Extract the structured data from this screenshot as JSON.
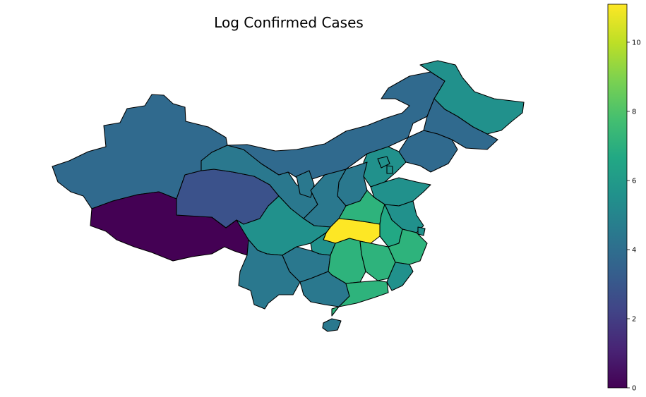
{
  "map": {
    "title": "Log Confirmed Cases"
  },
  "colorbar": {
    "min": 0,
    "max": 11.1,
    "ticks": [
      {
        "value": 0,
        "label": "0"
      },
      {
        "value": 2,
        "label": "2"
      },
      {
        "value": 4,
        "label": "4"
      },
      {
        "value": 6,
        "label": "6"
      },
      {
        "value": 8,
        "label": "8"
      },
      {
        "value": 10,
        "label": "10"
      }
    ],
    "colors": {
      "c0": "#440154",
      "c1": "#3b528b",
      "c2": "#306a8e",
      "c3": "#2a788e",
      "c4": "#21918c",
      "c5": "#22a884",
      "c6": "#2eb37c",
      "c7": "#fde725"
    }
  }
}
